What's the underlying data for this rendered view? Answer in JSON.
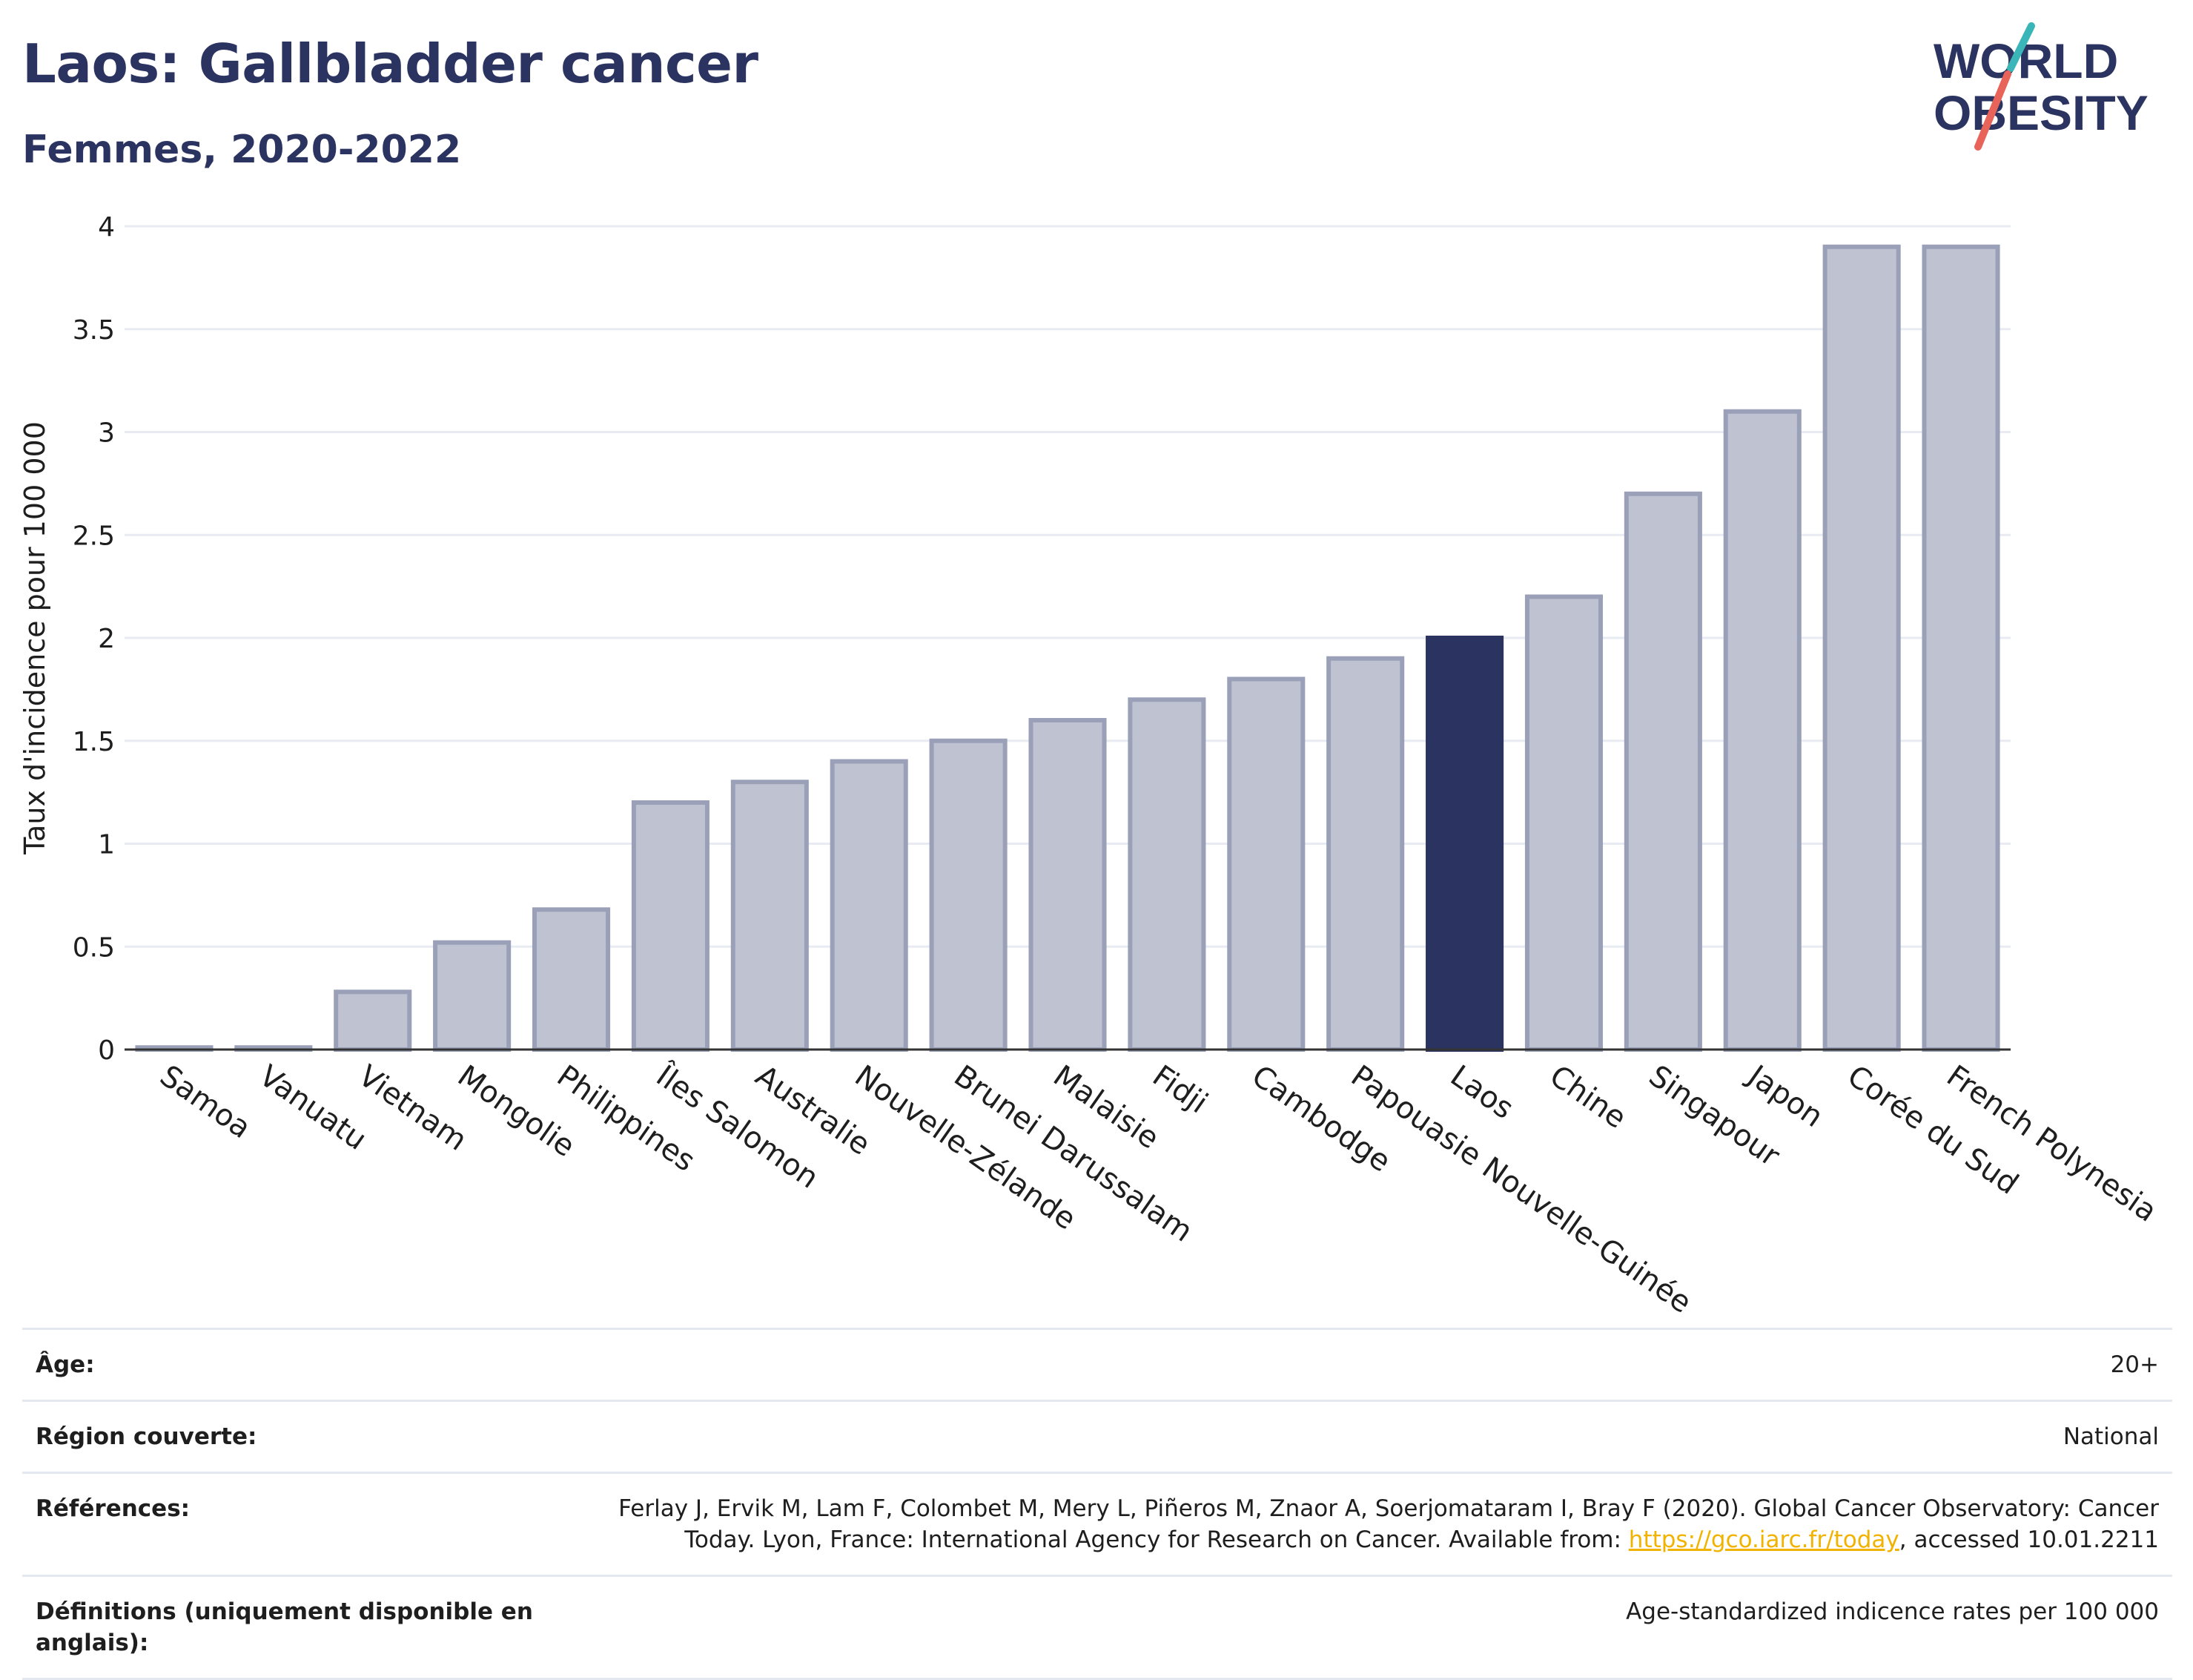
{
  "header": {
    "title": "Laos: Gallbladder cancer",
    "subtitle": "Femmes, 2020-2022",
    "logo_line1": "WORLD",
    "logo_line2": "OBESITY"
  },
  "colors": {
    "bar": "#bfc3d1",
    "bar_border": "#9aa0b8",
    "highlight": "#2b3461",
    "grid": "#e8ebf1",
    "axis": "#333333",
    "title": "#2b3461",
    "logo_teal": "#3bb6b8",
    "logo_red": "#e8645a"
  },
  "chart_data": {
    "type": "bar",
    "categories": [
      "Samoa",
      "Vanuatu",
      "Vietnam",
      "Mongolie",
      "Philippines",
      "Îles Salomon",
      "Australie",
      "Nouvelle-Zélande",
      "Brunei Darussalam",
      "Malaisie",
      "Fidji",
      "Cambodge",
      "Papouasie Nouvelle-Guinée",
      "Laos",
      "Chine",
      "Singapour",
      "Japon",
      "Corée du Sud",
      "French Polynesia"
    ],
    "values": [
      0.01,
      0.01,
      0.28,
      0.52,
      0.68,
      1.2,
      1.3,
      1.4,
      1.5,
      1.6,
      1.7,
      1.8,
      1.9,
      2.0,
      2.2,
      2.7,
      3.1,
      3.9,
      3.9
    ],
    "highlight": "Laos",
    "ylabel": "Taux d'incidence pour 100 000",
    "xlabel": "",
    "ylim": [
      0,
      4
    ],
    "yticks": [
      "0",
      "0.5",
      "1",
      "1.5",
      "2",
      "2.5",
      "3",
      "3.5",
      "4"
    ],
    "grid": true
  },
  "meta": {
    "age_label": "Âge:",
    "age_value": "20+",
    "region_label": "Région couverte:",
    "region_value": "National",
    "refs_label": "Références:",
    "refs_line1": "Ferlay J, Ervik M, Lam F, Colombet M, Mery L, Piñeros M, Znaor A, Soerjomataram I, Bray F (2020). Global Cancer Observatory: Cancer",
    "refs_line2_pre": "Today. Lyon, France: International Agency for Research on Cancer. Available from: ",
    "refs_link": "https://gco.iarc.fr/today",
    "refs_line2_post": ", accessed 10.01.2211",
    "defs_label": "Définitions (uniquement disponible en anglais):",
    "defs_value": "Age-standardized indicence rates per 100 000"
  }
}
